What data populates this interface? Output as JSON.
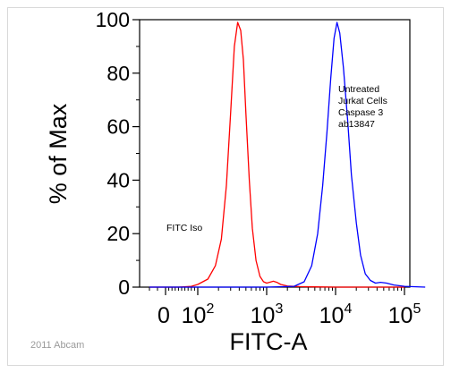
{
  "chart_data": {
    "type": "line",
    "title": "",
    "xlabel": "FITC-A",
    "ylabel": "% of Max",
    "x_scale": "biexponential",
    "xlim": [
      -30,
      250000
    ],
    "ylim": [
      0,
      100
    ],
    "y_ticks": [
      "0",
      "20",
      "40",
      "60",
      "80",
      "100"
    ],
    "x_ticks": [
      {
        "base": "0",
        "exp": ""
      },
      {
        "base": "10",
        "exp": "2"
      },
      {
        "base": "10",
        "exp": "3"
      },
      {
        "base": "10",
        "exp": "4"
      },
      {
        "base": "10",
        "exp": "5"
      }
    ],
    "grid": false,
    "series": [
      {
        "name": "FITC Iso",
        "color": "#ff0000",
        "x": [
          -20,
          40,
          80,
          100,
          140,
          180,
          220,
          260,
          300,
          340,
          380,
          420,
          460,
          500,
          560,
          620,
          700,
          800,
          900,
          1000,
          1100,
          1250,
          1400,
          1600,
          2000,
          3000,
          5000,
          10000,
          100000
        ],
        "y": [
          0,
          0,
          0.3,
          1,
          3,
          8,
          18,
          38,
          65,
          90,
          99,
          96,
          85,
          65,
          40,
          22,
          10,
          4,
          2,
          1.5,
          1.8,
          2.2,
          1.8,
          1,
          0.4,
          0.2,
          0.1,
          0,
          0
        ]
      },
      {
        "name": "Untreated Jurkat Cells Caspase 3 ab13847",
        "color": "#0000ff",
        "x": [
          -20,
          100,
          1000,
          2500,
          3500,
          4500,
          5500,
          6500,
          7500,
          8500,
          9500,
          10500,
          11500,
          13000,
          15000,
          17000,
          20000,
          23000,
          27000,
          32000,
          38000,
          45000,
          55000,
          70000,
          100000,
          200000
        ],
        "y": [
          0,
          0,
          0,
          0.3,
          2,
          8,
          20,
          38,
          58,
          78,
          93,
          99,
          95,
          82,
          62,
          42,
          24,
          12,
          5,
          2.5,
          1.5,
          1.8,
          1.5,
          0.8,
          0.3,
          0
        ]
      }
    ],
    "annotations": [
      {
        "lines": [
          "Untreated",
          "Jurkat Cells",
          "Caspase 3",
          "ab13847"
        ]
      },
      {
        "lines": [
          "FITC Iso"
        ]
      }
    ]
  },
  "credit": "2011 Abcam"
}
